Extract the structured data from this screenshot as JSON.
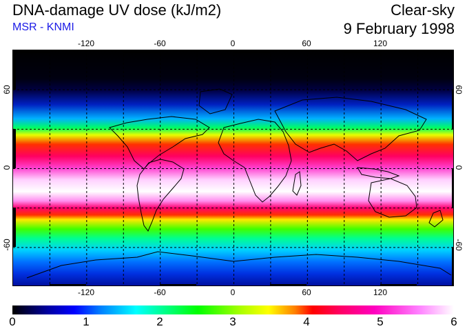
{
  "header": {
    "title": "DNA-damage UV dose (kJ/m2)",
    "subtitle": "MSR - KNMI",
    "condition": "Clear-sky",
    "date": "9 February 1998"
  },
  "map": {
    "projection": "equirectangular",
    "lon_range": [
      -180,
      180
    ],
    "lat_range": [
      -90,
      90
    ],
    "lon_ticks": [
      "-120",
      "-60",
      "0",
      "60",
      "120"
    ],
    "lat_ticks_left": [
      "60",
      "0",
      "-60"
    ],
    "lat_ticks_right": [
      "60",
      "0",
      "-60"
    ],
    "grid_lines": {
      "lon": [
        -150,
        -120,
        -90,
        -60,
        -30,
        0,
        30,
        60,
        90,
        120,
        150
      ],
      "lat": [
        -60,
        -30,
        0,
        30,
        60
      ]
    }
  },
  "colorbar": {
    "labels": [
      "0",
      "1",
      "2",
      "3",
      "4",
      "5",
      "6"
    ],
    "range": [
      0,
      6
    ]
  },
  "colors": {
    "subtitle": "#1a1ae6",
    "coastline": "#000000"
  }
}
